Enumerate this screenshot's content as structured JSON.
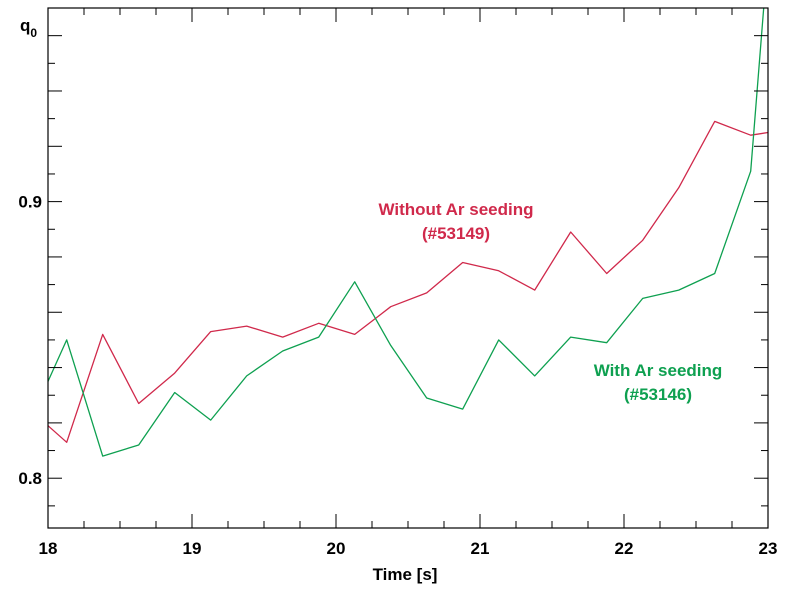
{
  "chart_data": {
    "type": "line",
    "xlabel": "Time [s]",
    "ylabel_main": "q",
    "ylabel_sub": "0",
    "xlim": [
      18,
      23
    ],
    "ylim": [
      0.782,
      0.97
    ],
    "xticks": [
      18,
      19,
      20,
      21,
      22,
      23
    ],
    "yticks": [
      0.8,
      0.9
    ],
    "xtick_labels": [
      "18",
      "19",
      "20",
      "21",
      "22",
      "23"
    ],
    "ytick_labels": [
      "0.8",
      "0.9"
    ],
    "grid": false,
    "series": [
      {
        "name": "Without Ar seeding (#53149)",
        "color": "#d0294b",
        "x": [
          18.0,
          18.13,
          18.38,
          18.63,
          18.88,
          19.13,
          19.38,
          19.63,
          19.88,
          20.13,
          20.38,
          20.63,
          20.88,
          21.13,
          21.38,
          21.63,
          21.88,
          22.13,
          22.38,
          22.63,
          22.88,
          23.0
        ],
        "y": [
          0.819,
          0.813,
          0.852,
          0.827,
          0.838,
          0.853,
          0.855,
          0.851,
          0.856,
          0.852,
          0.862,
          0.867,
          0.878,
          0.875,
          0.868,
          0.889,
          0.874,
          0.886,
          0.905,
          0.929,
          0.924,
          0.925
        ]
      },
      {
        "name": "With Ar seeding (#53146)",
        "color": "#0ea050",
        "x": [
          18.0,
          18.13,
          18.38,
          18.63,
          18.88,
          19.13,
          19.38,
          19.63,
          19.88,
          20.13,
          20.38,
          20.63,
          20.88,
          21.13,
          21.38,
          21.63,
          21.88,
          22.13,
          22.38,
          22.63,
          22.88,
          22.97
        ],
        "y": [
          0.835,
          0.85,
          0.808,
          0.812,
          0.831,
          0.821,
          0.837,
          0.846,
          0.851,
          0.871,
          0.848,
          0.829,
          0.825,
          0.85,
          0.837,
          0.851,
          0.849,
          0.865,
          0.868,
          0.874,
          0.911,
          0.97
        ]
      }
    ],
    "annotations": [
      {
        "lines": [
          "Without Ar seeding",
          "(#53149)"
        ],
        "color": "#d0294b"
      },
      {
        "lines": [
          "With Ar seeding",
          "(#53146)"
        ],
        "color": "#0ea050"
      }
    ]
  }
}
